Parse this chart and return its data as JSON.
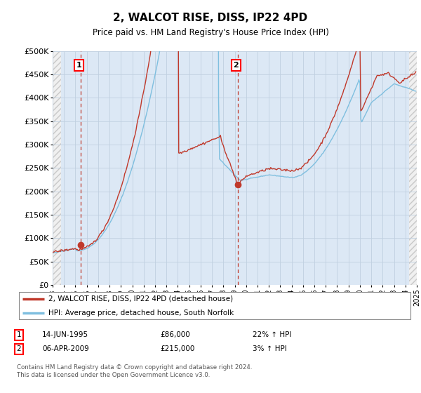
{
  "title": "2, WALCOT RISE, DISS, IP22 4PD",
  "subtitle": "Price paid vs. HM Land Registry's House Price Index (HPI)",
  "xlim": [
    1993,
    2025
  ],
  "ylim": [
    0,
    500000
  ],
  "yticks": [
    0,
    50000,
    100000,
    150000,
    200000,
    250000,
    300000,
    350000,
    400000,
    450000,
    500000
  ],
  "ytick_labels": [
    "£0",
    "£50K",
    "£100K",
    "£150K",
    "£200K",
    "£250K",
    "£300K",
    "£350K",
    "£400K",
    "£450K",
    "£500K"
  ],
  "xticks": [
    1993,
    1994,
    1995,
    1996,
    1997,
    1998,
    1999,
    2000,
    2001,
    2002,
    2003,
    2004,
    2005,
    2006,
    2007,
    2008,
    2009,
    2010,
    2011,
    2012,
    2013,
    2014,
    2015,
    2016,
    2017,
    2018,
    2019,
    2020,
    2021,
    2022,
    2023,
    2024,
    2025
  ],
  "hpi_color": "#7fbfdf",
  "price_color": "#c0392b",
  "grid_color": "#c0d0e0",
  "background_plot": "#dce8f5",
  "hatch_facecolor": "#f0f0f0",
  "hatch_edgecolor": "#c8c8c8",
  "transaction1": {
    "year": 1995.45,
    "price": 86000,
    "label": "1",
    "date": "14-JUN-1995",
    "price_str": "£86,000",
    "hpi_str": "22% ↑ HPI"
  },
  "transaction2": {
    "year": 2009.27,
    "price": 215000,
    "label": "2",
    "date": "06-APR-2009",
    "price_str": "£215,000",
    "hpi_str": "3% ↑ HPI"
  },
  "legend_line1": "2, WALCOT RISE, DISS, IP22 4PD (detached house)",
  "legend_line2": "HPI: Average price, detached house, South Norfolk",
  "footer": "Contains HM Land Registry data © Crown copyright and database right 2024.\nThis data is licensed under the Open Government Licence v3.0."
}
